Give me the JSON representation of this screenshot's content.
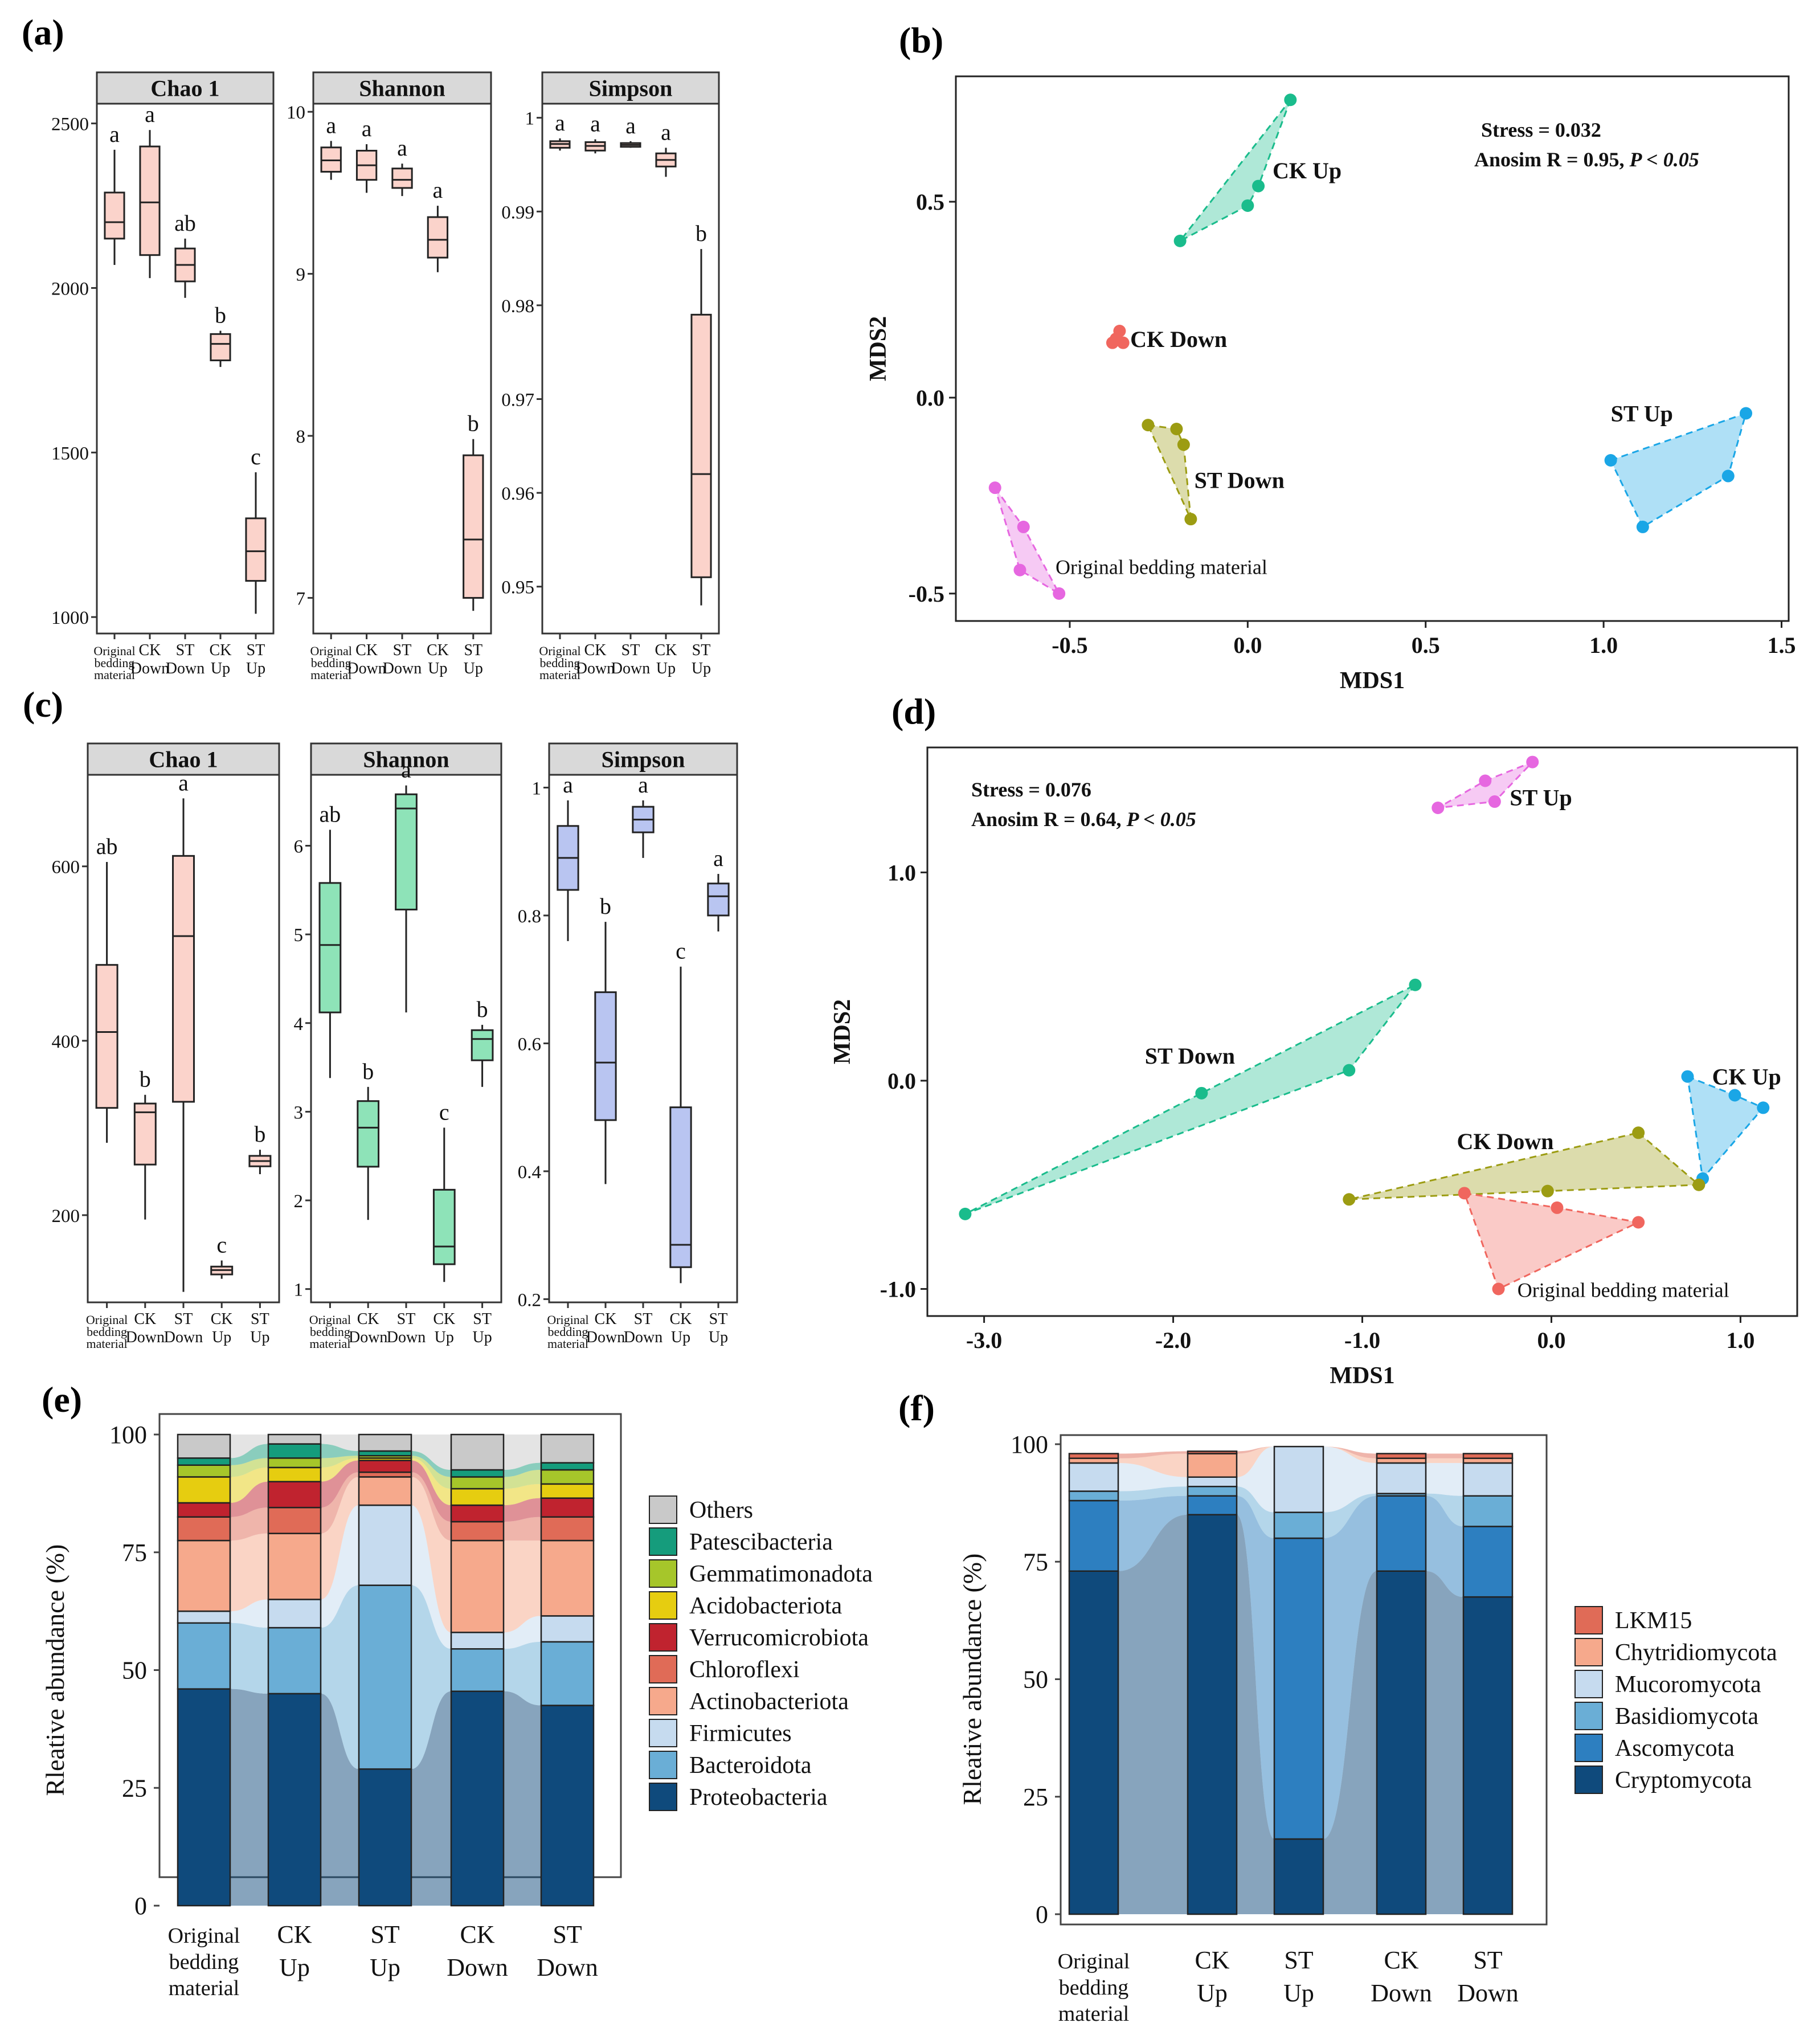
{
  "panel_labels": [
    "(a)",
    "(b)",
    "(c)",
    "(d)",
    "(e)",
    "(f)"
  ],
  "chart_data": [
    {
      "id": "a",
      "type": "box",
      "groups": [
        "Original bedding material",
        "CK Down",
        "ST Down",
        "CK Up",
        "ST Up"
      ],
      "group_label_lines": [
        [
          "Original",
          "bedding",
          "material"
        ],
        [
          "CK",
          "Down"
        ],
        [
          "ST",
          "Down"
        ],
        [
          "CK",
          "Up"
        ],
        [
          "ST",
          "Up"
        ]
      ],
      "fill": "#fbd3cb",
      "facets": [
        {
          "title": "Chao 1",
          "ylim": [
            950,
            2560
          ],
          "ticks": [
            1000,
            1500,
            2000,
            2500
          ],
          "boxes": [
            {
              "min": 2070,
              "q1": 2150,
              "median": 2200,
              "q3": 2290,
              "max": 2420,
              "letter": "a"
            },
            {
              "min": 2030,
              "q1": 2100,
              "median": 2260,
              "q3": 2430,
              "max": 2480,
              "letter": "a"
            },
            {
              "min": 1970,
              "q1": 2020,
              "median": 2070,
              "q3": 2120,
              "max": 2150,
              "letter": "ab"
            },
            {
              "min": 1760,
              "q1": 1780,
              "median": 1830,
              "q3": 1860,
              "max": 1870,
              "letter": "b"
            },
            {
              "min": 1010,
              "q1": 1110,
              "median": 1200,
              "q3": 1300,
              "max": 1440,
              "letter": "c"
            }
          ]
        },
        {
          "title": "Shannon",
          "ylim": [
            6.78,
            10.05
          ],
          "ticks": [
            7,
            8,
            9,
            10
          ],
          "boxes": [
            {
              "min": 9.58,
              "q1": 9.63,
              "median": 9.7,
              "q3": 9.78,
              "max": 9.82,
              "letter": "a"
            },
            {
              "min": 9.5,
              "q1": 9.58,
              "median": 9.67,
              "q3": 9.76,
              "max": 9.8,
              "letter": "a"
            },
            {
              "min": 9.48,
              "q1": 9.53,
              "median": 9.58,
              "q3": 9.65,
              "max": 9.68,
              "letter": "a"
            },
            {
              "min": 9.01,
              "q1": 9.1,
              "median": 9.21,
              "q3": 9.35,
              "max": 9.42,
              "letter": "a"
            },
            {
              "min": 6.92,
              "q1": 7.0,
              "median": 7.36,
              "q3": 7.88,
              "max": 7.98,
              "letter": "b"
            }
          ]
        },
        {
          "title": "Simpson",
          "ylim": [
            0.945,
            1.0015
          ],
          "ticks": [
            0.95,
            0.96,
            0.97,
            0.98,
            0.99,
            1.0
          ],
          "boxes": [
            {
              "min": 0.9965,
              "q1": 0.9968,
              "median": 0.9972,
              "q3": 0.9975,
              "max": 0.9978,
              "letter": "a"
            },
            {
              "min": 0.9962,
              "q1": 0.9965,
              "median": 0.997,
              "q3": 0.9974,
              "max": 0.9977,
              "letter": "a"
            },
            {
              "min": 0.9968,
              "q1": 0.9969,
              "median": 0.9971,
              "q3": 0.9973,
              "max": 0.9975,
              "letter": "a"
            },
            {
              "min": 0.9937,
              "q1": 0.9948,
              "median": 0.9955,
              "q3": 0.9962,
              "max": 0.9968,
              "letter": "a"
            },
            {
              "min": 0.948,
              "q1": 0.951,
              "median": 0.962,
              "q3": 0.979,
              "max": 0.986,
              "letter": "b"
            }
          ]
        }
      ]
    },
    {
      "id": "b",
      "type": "scatter",
      "xlabel": "MDS1",
      "ylabel": "MDS2",
      "xlim": [
        -0.82,
        1.52
      ],
      "ylim": [
        -0.57,
        0.82
      ],
      "xticks": [
        -0.5,
        0.0,
        0.5,
        1.0,
        1.5
      ],
      "xtick_labels": [
        "-0.5",
        "0.0",
        "0.5",
        "1.0",
        "1.5"
      ],
      "yticks": [
        -0.5,
        0.0,
        0.5
      ],
      "ytick_labels": [
        "-0.5",
        "0.0",
        "0.5"
      ],
      "stats": [
        "Stress = 0.032",
        "Anosim R = 0.95, "
      ],
      "stats_p": "P < 0.05",
      "series": [
        {
          "name": "CK Up",
          "color": "#1abc8c",
          "points": [
            [
              -0.19,
              0.4
            ],
            [
              0.0,
              0.49
            ],
            [
              0.03,
              0.54
            ],
            [
              0.12,
              0.76
            ]
          ],
          "label_at": [
            0.07,
            0.58
          ]
        },
        {
          "name": "CK Down",
          "color": "#f0665e",
          "points": [
            [
              -0.38,
              0.14
            ],
            [
              -0.36,
              0.17
            ],
            [
              -0.35,
              0.14
            ],
            [
              -0.37,
              0.15
            ]
          ],
          "label_at": [
            -0.33,
            0.15
          ]
        },
        {
          "name": "ST Down",
          "color": "#9c9c12",
          "points": [
            [
              -0.28,
              -0.07
            ],
            [
              -0.2,
              -0.08
            ],
            [
              -0.18,
              -0.12
            ],
            [
              -0.16,
              -0.31
            ]
          ],
          "label_at": [
            -0.15,
            -0.21
          ]
        },
        {
          "name": "ST Up",
          "color": "#1aa6e6",
          "points": [
            [
              1.02,
              -0.16
            ],
            [
              1.11,
              -0.33
            ],
            [
              1.35,
              -0.2
            ],
            [
              1.4,
              -0.04
            ]
          ],
          "label_at": [
            1.02,
            -0.04
          ]
        },
        {
          "name": "Original bedding material",
          "color": "#e667e0",
          "points": [
            [
              -0.71,
              -0.23
            ],
            [
              -0.63,
              -0.33
            ],
            [
              -0.64,
              -0.44
            ],
            [
              -0.53,
              -0.5
            ]
          ],
          "label_at": [
            -0.54,
            -0.43
          ]
        }
      ]
    },
    {
      "id": "c",
      "type": "box",
      "groups": [
        "Original bedding material",
        "CK Down",
        "ST Down",
        "CK Up",
        "ST Up"
      ],
      "group_label_lines": [
        [
          "Original",
          "bedding",
          "material"
        ],
        [
          "CK",
          "Down"
        ],
        [
          "ST",
          "Down"
        ],
        [
          "CK",
          "Up"
        ],
        [
          "ST",
          "Up"
        ]
      ],
      "facets": [
        {
          "title": "Chao 1",
          "fill": "#fbd3cb",
          "ylim": [
            100,
            705
          ],
          "ticks": [
            200,
            400,
            600
          ],
          "boxes": [
            {
              "min": 283,
              "q1": 323,
              "median": 410,
              "q3": 487,
              "max": 605,
              "letter": "ab"
            },
            {
              "min": 195,
              "q1": 258,
              "median": 318,
              "q3": 328,
              "max": 338,
              "letter": "b"
            },
            {
              "min": 112,
              "q1": 330,
              "median": 520,
              "q3": 612,
              "max": 678,
              "letter": "a"
            },
            {
              "min": 127,
              "q1": 132,
              "median": 137,
              "q3": 141,
              "max": 148,
              "letter": "c"
            },
            {
              "min": 247,
              "q1": 256,
              "median": 262,
              "q3": 268,
              "max": 275,
              "letter": "b"
            }
          ]
        },
        {
          "title": "Shannon",
          "fill": "#8ee3b8",
          "ylim": [
            0.85,
            6.8
          ],
          "ticks": [
            1,
            2,
            3,
            4,
            5,
            6
          ],
          "boxes": [
            {
              "min": 3.38,
              "q1": 4.12,
              "median": 4.88,
              "q3": 5.58,
              "max": 6.18,
              "letter": "ab"
            },
            {
              "min": 1.78,
              "q1": 2.38,
              "median": 2.82,
              "q3": 3.12,
              "max": 3.28,
              "letter": "b"
            },
            {
              "min": 4.12,
              "q1": 5.28,
              "median": 6.42,
              "q3": 6.58,
              "max": 6.68,
              "letter": "a"
            },
            {
              "min": 1.08,
              "q1": 1.28,
              "median": 1.48,
              "q3": 2.12,
              "max": 2.82,
              "letter": "c"
            },
            {
              "min": 3.28,
              "q1": 3.58,
              "median": 3.82,
              "q3": 3.92,
              "max": 3.98,
              "letter": "b"
            }
          ]
        },
        {
          "title": "Simpson",
          "fill": "#b9c5f1",
          "ylim": [
            0.195,
            1.02
          ],
          "ticks": [
            0.2,
            0.4,
            0.6,
            0.8,
            1.0
          ],
          "boxes": [
            {
              "min": 0.76,
              "q1": 0.84,
              "median": 0.89,
              "q3": 0.94,
              "max": 0.98,
              "letter": "a"
            },
            {
              "min": 0.38,
              "q1": 0.48,
              "median": 0.57,
              "q3": 0.68,
              "max": 0.79,
              "letter": "b"
            },
            {
              "min": 0.89,
              "q1": 0.93,
              "median": 0.95,
              "q3": 0.97,
              "max": 0.98,
              "letter": "a"
            },
            {
              "min": 0.225,
              "q1": 0.25,
              "median": 0.285,
              "q3": 0.5,
              "max": 0.72,
              "letter": "c"
            },
            {
              "min": 0.775,
              "q1": 0.8,
              "median": 0.83,
              "q3": 0.85,
              "max": 0.865,
              "letter": "a"
            }
          ]
        }
      ]
    },
    {
      "id": "d",
      "type": "scatter",
      "xlabel": "MDS1",
      "ylabel": "MDS2",
      "xlim": [
        -3.3,
        1.3
      ],
      "ylim": [
        -1.13,
        1.6
      ],
      "xticks": [
        -3,
        -2,
        -1,
        0,
        1
      ],
      "xtick_labels": [
        "-3.0",
        "-2.0",
        "-1.0",
        "0.0",
        "1.0"
      ],
      "yticks": [
        -1,
        0,
        1
      ],
      "ytick_labels": [
        "-1.0",
        "0.0",
        "1.0"
      ],
      "stats": [
        "Stress = 0.076",
        "Anosim R = 0.64, "
      ],
      "stats_p": "P < 0.05",
      "series": [
        {
          "name": "ST Up",
          "color": "#e667e0",
          "points": [
            [
              -0.6,
              1.31
            ],
            [
              -0.35,
              1.44
            ],
            [
              -0.3,
              1.34
            ],
            [
              -0.1,
              1.53
            ]
          ],
          "label_at": [
            -0.22,
            1.36
          ]
        },
        {
          "name": "ST Down",
          "color": "#1abc8c",
          "points": [
            [
              -3.1,
              -0.64
            ],
            [
              -1.85,
              -0.06
            ],
            [
              -1.07,
              0.05
            ],
            [
              -0.72,
              0.46
            ]
          ],
          "label_at": [
            -2.15,
            0.12
          ]
        },
        {
          "name": "CK Up",
          "color": "#1aa6e6",
          "points": [
            [
              0.72,
              0.02
            ],
            [
              0.8,
              -0.47
            ],
            [
              0.97,
              -0.07
            ],
            [
              1.12,
              -0.13
            ]
          ],
          "label_at": [
            0.85,
            0.02
          ]
        },
        {
          "name": "CK Down",
          "color": "#9c9c12",
          "points": [
            [
              -1.07,
              -0.57
            ],
            [
              -0.02,
              -0.53
            ],
            [
              0.46,
              -0.25
            ],
            [
              0.78,
              -0.5
            ]
          ],
          "label_at": [
            -0.5,
            -0.29
          ]
        },
        {
          "name": "Original bedding material",
          "color": "#f0665e",
          "points": [
            [
              -0.46,
              -0.54
            ],
            [
              -0.28,
              -1.0
            ],
            [
              0.03,
              -0.61
            ],
            [
              0.46,
              -0.68
            ]
          ],
          "label_at": [
            -0.18,
            -1.0
          ]
        }
      ]
    },
    {
      "id": "e",
      "type": "stacked_bar",
      "ylabel": "Rleative abundance (%)",
      "ylim": [
        0,
        100
      ],
      "yticks": [
        0,
        25,
        50,
        75,
        100
      ],
      "categories": [
        "Original bedding material",
        "CK Up",
        "ST Up",
        "CK Down",
        "ST Down"
      ],
      "category_label_lines": [
        [
          "Original",
          "bedding",
          "material"
        ],
        [
          "CK",
          "Up"
        ],
        [
          "ST",
          "Up"
        ],
        [
          "CK",
          "Down"
        ],
        [
          "ST",
          "Down"
        ]
      ],
      "series": [
        {
          "name": "Proteobacteria",
          "color": "#0f4a7c",
          "values": [
            46,
            45,
            29,
            45.5,
            42.5
          ]
        },
        {
          "name": "Bacteroidota",
          "color": "#6aaed6",
          "values": [
            14,
            14,
            39,
            9,
            13.5
          ]
        },
        {
          "name": "Firmicutes",
          "color": "#c6dbef",
          "values": [
            2.5,
            6,
            17,
            3.5,
            5.5
          ]
        },
        {
          "name": "Actinobacteriota",
          "color": "#f6a98c",
          "values": [
            15,
            14,
            6,
            19.5,
            16
          ]
        },
        {
          "name": "Chloroflexi",
          "color": "#e06b57",
          "values": [
            5,
            5.5,
            1,
            4,
            5
          ]
        },
        {
          "name": "Verrucomicrobiota",
          "color": "#c0232f",
          "values": [
            3,
            5.5,
            2.5,
            3.5,
            4
          ]
        },
        {
          "name": "Acidobacteriota",
          "color": "#e6cd10",
          "values": [
            5.5,
            3,
            0.5,
            3.5,
            3
          ]
        },
        {
          "name": "Gemmatimonadota",
          "color": "#a6c62a",
          "values": [
            2.5,
            2,
            0.5,
            2.5,
            3
          ]
        },
        {
          "name": "Patescibacteria",
          "color": "#159c7c",
          "values": [
            1.5,
            3,
            1,
            1.5,
            1.5
          ]
        },
        {
          "name": "Others",
          "color": "#c9c9c9",
          "values": [
            5,
            2,
            3.5,
            7.5,
            6
          ]
        }
      ],
      "legend_order": [
        "Others",
        "Patescibacteria",
        "Gemmatimonadota",
        "Acidobacteriota",
        "Verrucomicrobiota",
        "Chloroflexi",
        "Actinobacteriota",
        "Firmicutes",
        "Bacteroidota",
        "Proteobacteria"
      ]
    },
    {
      "id": "f",
      "type": "stacked_bar",
      "ylabel": "Rleative abundance (%)",
      "ylim": [
        0,
        100
      ],
      "yticks": [
        0,
        25,
        50,
        75,
        100
      ],
      "categories": [
        "Original bedding material",
        "CK Up",
        "ST Up",
        "CK Down",
        "ST Down"
      ],
      "category_label_lines": [
        [
          "Original",
          "bedding",
          "material"
        ],
        [
          "CK",
          "Up"
        ],
        [
          "ST",
          "Up"
        ],
        [
          "CK",
          "Down"
        ],
        [
          "ST",
          "Down"
        ]
      ],
      "series": [
        {
          "name": "Cryptomycota",
          "color": "#0f4a7c",
          "values": [
            73,
            85,
            16,
            73,
            67.5
          ]
        },
        {
          "name": "Ascomycota",
          "color": "#2d7fc0",
          "values": [
            15,
            4,
            64,
            16,
            15
          ]
        },
        {
          "name": "Basidiomycota",
          "color": "#6aaed6",
          "values": [
            2,
            2,
            5.5,
            0.5,
            6.5
          ]
        },
        {
          "name": "Mucoromycota",
          "color": "#c6dbef",
          "values": [
            6,
            2,
            14,
            6.5,
            7
          ]
        },
        {
          "name": "Chytridiomycota",
          "color": "#f6a98c",
          "values": [
            1,
            5,
            0,
            1,
            1
          ]
        },
        {
          "name": "LKM15",
          "color": "#e06b57",
          "values": [
            1,
            0.5,
            0,
            1,
            1
          ]
        }
      ],
      "legend_order": [
        "LKM15",
        "Chytridiomycota",
        "Mucoromycota",
        "Basidiomycota",
        "Ascomycota",
        "Cryptomycota"
      ]
    }
  ]
}
